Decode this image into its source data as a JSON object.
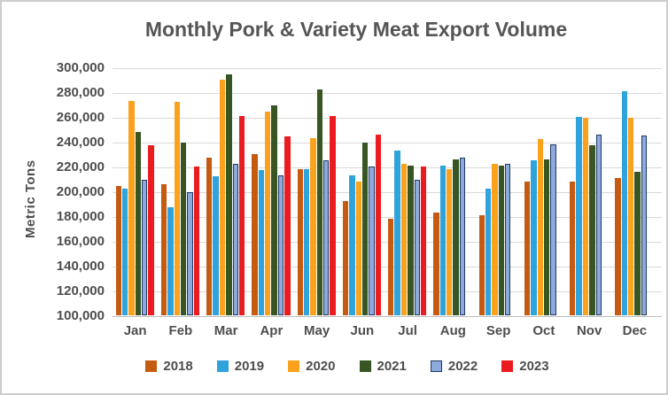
{
  "title": "Monthly Pork & Variety Meat Export Volume",
  "y_axis": {
    "label": "Metric Tons"
  },
  "chart_data": {
    "type": "bar",
    "title": "Monthly Pork & Variety Meat Export Volume",
    "xlabel": "",
    "ylabel": "Metric Tons",
    "ylim": [
      100000,
      300000
    ],
    "ytick_step": 20000,
    "grid": true,
    "legend_position": "bottom",
    "categories": [
      "Jan",
      "Feb",
      "Mar",
      "Apr",
      "May",
      "Jun",
      "Jul",
      "Aug",
      "Sep",
      "Oct",
      "Nov",
      "Dec"
    ],
    "series": [
      {
        "name": "2018",
        "color": "#C55A11",
        "values": [
          204000,
          206000,
          227000,
          230000,
          218000,
          192000,
          178000,
          183000,
          181000,
          208000,
          208000,
          211000
        ]
      },
      {
        "name": "2019",
        "color": "#2EA3DC",
        "values": [
          202000,
          187000,
          212000,
          217000,
          218000,
          213000,
          233000,
          221000,
          202000,
          225000,
          260000,
          281000
        ]
      },
      {
        "name": "2020",
        "color": "#FAA21B",
        "values": [
          273000,
          272000,
          290000,
          264000,
          243000,
          208000,
          222000,
          218000,
          222000,
          242000,
          259000,
          259000
        ]
      },
      {
        "name": "2021",
        "color": "#375623",
        "values": [
          248000,
          239000,
          294000,
          269000,
          282000,
          239000,
          221000,
          226000,
          221000,
          226000,
          237000,
          216000
        ]
      },
      {
        "name": "2022",
        "color": "#8EA9DB",
        "border_color": "#203864",
        "values": [
          209000,
          199000,
          222000,
          213000,
          225000,
          220000,
          209000,
          227000,
          222000,
          238000,
          246000,
          245000
        ]
      },
      {
        "name": "2023",
        "color": "#EB1C20",
        "values": [
          237000,
          220000,
          261000,
          244000,
          261000,
          246000,
          220000,
          null,
          null,
          null,
          null,
          null
        ]
      }
    ]
  },
  "colors": {
    "grid": "#d9d9d9",
    "axis_line": "#bdbdbd",
    "text": "#4d4d4d",
    "title_text": "#555555",
    "frame_border": "#cdcdcd"
  }
}
